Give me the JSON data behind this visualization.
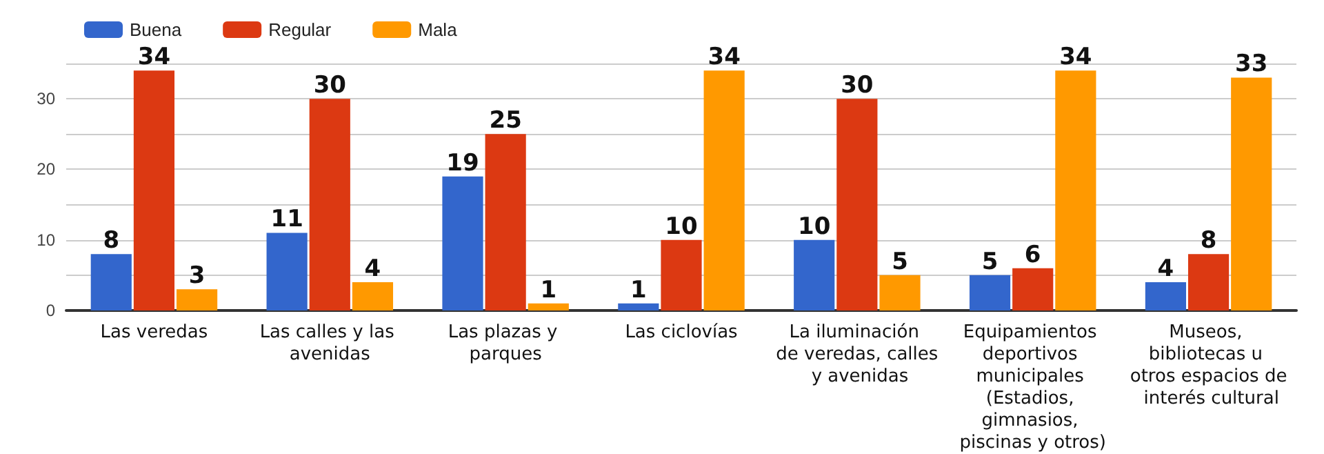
{
  "chart_data": {
    "type": "bar",
    "categories": [
      "Las veredas",
      "Las calles y las avenidas",
      "Las plazas y parques",
      "Las ciclovías",
      "La iluminación de veredas, calles y avenidas",
      "Equipamientos deportivos municipales (Estadios, gimnasios, piscinas y otros)",
      "Museos, bibliotecas u otros espacios de interés cultural"
    ],
    "series": [
      {
        "name": "Buena",
        "color": "#3366cc",
        "values": [
          8,
          11,
          19,
          1,
          10,
          5,
          4
        ]
      },
      {
        "name": "Regular",
        "color": "#dc3912",
        "values": [
          34,
          30,
          25,
          10,
          30,
          6,
          8
        ]
      },
      {
        "name": "Mala",
        "color": "#ff9900",
        "values": [
          3,
          4,
          1,
          34,
          5,
          34,
          33
        ]
      }
    ],
    "ylim": [
      0,
      35
    ],
    "yticks": [
      0,
      {
        "value": 5,
        "label": null
      },
      10,
      {
        "value": 15,
        "label": null
      },
      20,
      {
        "value": 25,
        "label": null
      },
      30,
      {
        "value": 35,
        "label": null
      }
    ],
    "grid": "y",
    "legend": "top left",
    "data_labels": true
  }
}
